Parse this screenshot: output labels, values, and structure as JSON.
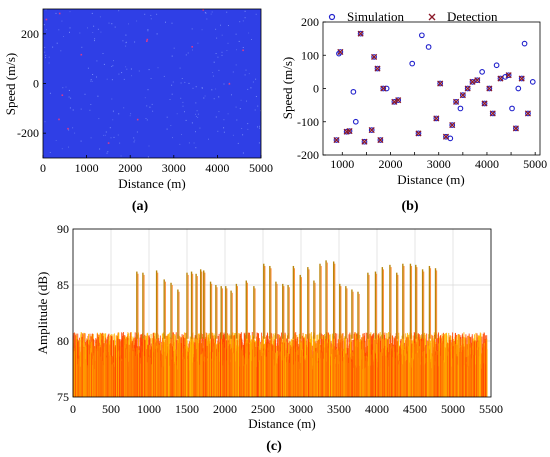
{
  "panels": {
    "a": {
      "caption": "(a)"
    },
    "b": {
      "caption": "(b)"
    },
    "c": {
      "caption": "(c)"
    }
  },
  "chart_data": [
    {
      "id": "a",
      "type": "heatmap",
      "xlabel": "Distance (m)",
      "ylabel": "Speed (m/s)",
      "xlim": [
        0,
        5000
      ],
      "ylim": [
        -300,
        300
      ],
      "xticks": [
        0,
        1000,
        2000,
        3000,
        4000,
        5000
      ],
      "yticks": [
        -200,
        0,
        200
      ],
      "colors": {
        "background": "#2f3fe6",
        "speckle_light": "#8aa0ff",
        "speckle_hot": "#ff3a7a"
      }
    },
    {
      "id": "b",
      "type": "scatter",
      "xlabel": "Distance (m)",
      "ylabel": "Speed (m/s)",
      "xlim": [
        600,
        5100
      ],
      "ylim": [
        -200,
        200
      ],
      "xticks": [
        1000,
        1500,
        2000,
        2500,
        3000,
        3500,
        4000,
        4500,
        5000
      ],
      "xtick_labels": [
        "1000",
        "",
        "2000",
        "",
        "3000",
        "",
        "4000",
        "",
        "5000"
      ],
      "yticks": [
        -200,
        -100,
        0,
        100,
        200
      ],
      "legend_position": "top",
      "series": [
        {
          "name": "Simulation",
          "marker": "circle",
          "color": "#2222cc",
          "points": [
            [
              880,
              -155
            ],
            [
              930,
              105
            ],
            [
              960,
              110
            ],
            [
              1090,
              -130
            ],
            [
              1150,
              -128
            ],
            [
              1230,
              -10
            ],
            [
              1280,
              -100
            ],
            [
              1380,
              165
            ],
            [
              1460,
              -160
            ],
            [
              1610,
              -125
            ],
            [
              1660,
              95
            ],
            [
              1730,
              60
            ],
            [
              1790,
              -155
            ],
            [
              1850,
              0
            ],
            [
              1920,
              0
            ],
            [
              2080,
              -40
            ],
            [
              2160,
              -35
            ],
            [
              2450,
              75
            ],
            [
              2580,
              -135
            ],
            [
              2650,
              160
            ],
            [
              2790,
              125
            ],
            [
              2950,
              -90
            ],
            [
              3030,
              15
            ],
            [
              3150,
              -145
            ],
            [
              3240,
              -150
            ],
            [
              3280,
              -110
            ],
            [
              3360,
              -40
            ],
            [
              3450,
              -60
            ],
            [
              3500,
              -20
            ],
            [
              3600,
              0
            ],
            [
              3700,
              20
            ],
            [
              3800,
              25
            ],
            [
              3900,
              50
            ],
            [
              3950,
              -45
            ],
            [
              4050,
              0
            ],
            [
              4120,
              -75
            ],
            [
              4200,
              70
            ],
            [
              4280,
              30
            ],
            [
              4380,
              35
            ],
            [
              4450,
              40
            ],
            [
              4520,
              -60
            ],
            [
              4600,
              -120
            ],
            [
              4650,
              0
            ],
            [
              4720,
              30
            ],
            [
              4780,
              135
            ],
            [
              4850,
              -75
            ],
            [
              4950,
              20
            ]
          ]
        },
        {
          "name": "Detection",
          "marker": "x",
          "color": "#8b1a2a",
          "points": [
            [
              880,
              -155
            ],
            [
              960,
              110
            ],
            [
              1090,
              -130
            ],
            [
              1150,
              -128
            ],
            [
              1380,
              165
            ],
            [
              1460,
              -160
            ],
            [
              1610,
              -125
            ],
            [
              1660,
              95
            ],
            [
              1730,
              60
            ],
            [
              1790,
              -155
            ],
            [
              1850,
              0
            ],
            [
              2080,
              -40
            ],
            [
              2160,
              -35
            ],
            [
              2580,
              -135
            ],
            [
              2950,
              -90
            ],
            [
              3030,
              15
            ],
            [
              3150,
              -145
            ],
            [
              3280,
              -110
            ],
            [
              3360,
              -40
            ],
            [
              3500,
              -20
            ],
            [
              3600,
              0
            ],
            [
              3700,
              20
            ],
            [
              3800,
              25
            ],
            [
              3950,
              -45
            ],
            [
              4050,
              0
            ],
            [
              4120,
              -75
            ],
            [
              4280,
              30
            ],
            [
              4450,
              40
            ],
            [
              4600,
              -120
            ],
            [
              4720,
              30
            ],
            [
              4850,
              -75
            ]
          ]
        }
      ]
    },
    {
      "id": "c",
      "type": "line",
      "xlabel": "Distance (m)",
      "ylabel": "Amplitude (dB)",
      "xlim": [
        0,
        5500
      ],
      "ylim": [
        75,
        90
      ],
      "xticks": [
        0,
        500,
        1000,
        1500,
        2000,
        2500,
        3000,
        3500,
        4000,
        4500,
        5000,
        5500
      ],
      "yticks": [
        75,
        80,
        85,
        90
      ],
      "grid": true,
      "noise_floor_db": [
        75.5,
        80.8
      ],
      "colors": {
        "noise_dark": "#ff4500",
        "noise_light": "#ffb400",
        "peak": "#b8860b"
      },
      "peaks": {
        "x": [
          840,
          920,
          1100,
          1200,
          1290,
          1380,
          1500,
          1560,
          1620,
          1680,
          1720,
          1810,
          1880,
          1950,
          2010,
          2080,
          2150,
          2280,
          2380,
          2510,
          2590,
          2670,
          2760,
          2830,
          2900,
          2990,
          3090,
          3170,
          3250,
          3330,
          3430,
          3510,
          3590,
          3670,
          3750,
          3880,
          3980,
          4070,
          4170,
          4260,
          4340,
          4440,
          4510,
          4600,
          4690,
          4770
        ],
        "y": [
          86.2,
          86.1,
          86.3,
          85.5,
          85.2,
          84.6,
          86.1,
          86.2,
          86.0,
          86.4,
          86.3,
          85.3,
          85.0,
          84.9,
          84.9,
          84.5,
          85.1,
          85.4,
          84.9,
          86.9,
          86.7,
          85.3,
          85.1,
          85.0,
          86.7,
          85.9,
          86.6,
          85.4,
          86.9,
          87.2,
          87.1,
          85.1,
          84.9,
          84.6,
          84.4,
          86.1,
          86.2,
          86.6,
          86.8,
          86.1,
          86.9,
          86.9,
          86.8,
          86.4,
          86.7,
          86.5
        ]
      }
    }
  ]
}
